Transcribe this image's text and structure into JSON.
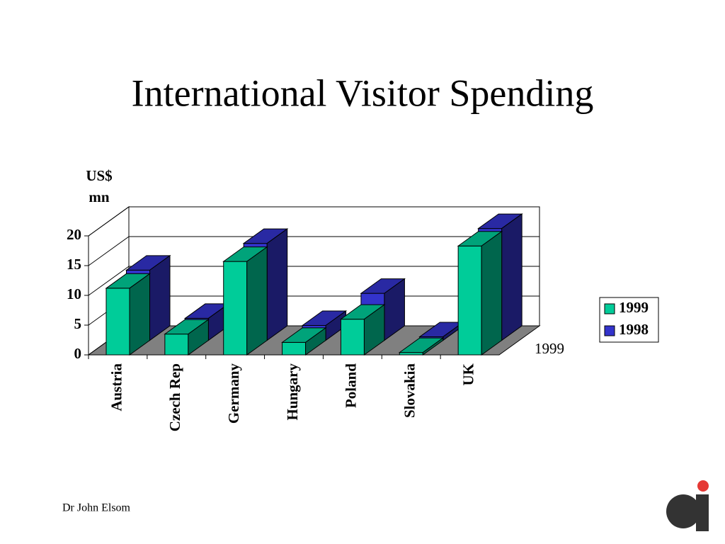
{
  "chart_data": {
    "type": "bar3d",
    "title": "International Visitor Spending",
    "y_axis_label": "US$ mn",
    "depth_label": "1999",
    "categories": [
      "Austria",
      "Czech Rep",
      "Germany",
      "Hungary",
      "Poland",
      "Slovakia",
      "UK"
    ],
    "series": [
      {
        "name": "1999",
        "color": "#00cc99",
        "values": [
          11.2,
          3.5,
          15.7,
          2.1,
          6,
          0.4,
          18.3
        ]
      },
      {
        "name": "1998",
        "color": "#3333cc",
        "values": [
          11.8,
          3.7,
          16.3,
          2.5,
          7.9,
          0.6,
          18.8
        ]
      }
    ],
    "ylim": [
      0,
      20
    ],
    "yticks": [
      0,
      5,
      10,
      15,
      20
    ],
    "grid": true,
    "legend": "right"
  },
  "footer": "Dr John Elsom"
}
